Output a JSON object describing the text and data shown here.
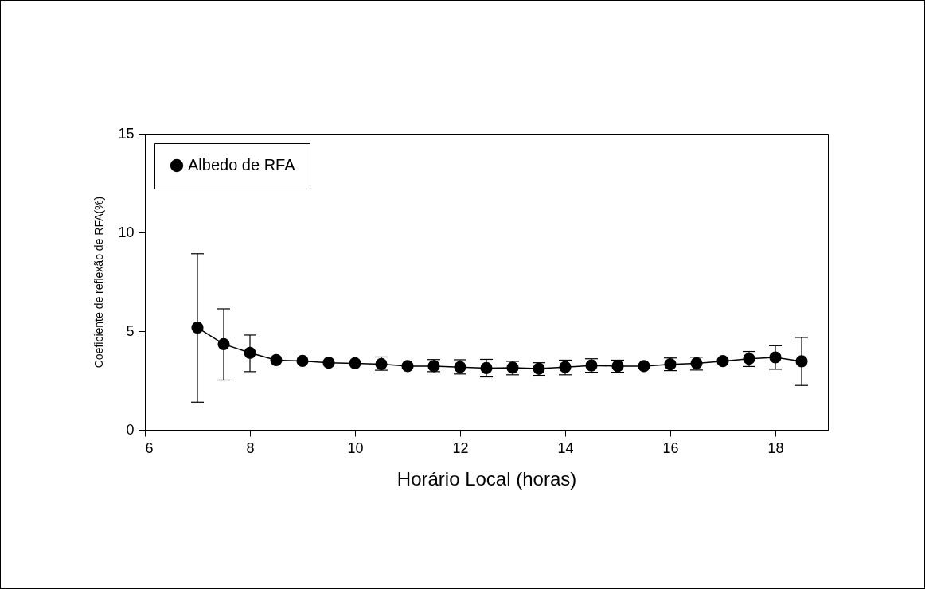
{
  "chart_data": {
    "type": "line",
    "xlabel": "Horário Local (horas)",
    "ylabel": "Coeficiente de reflexão de RFA(%)",
    "x": [
      7,
      7.5,
      8,
      8.5,
      9,
      9.5,
      10,
      10.5,
      11,
      11.5,
      12,
      12.5,
      13,
      13.5,
      14,
      14.5,
      15,
      15.5,
      16,
      16.5,
      17,
      17.5,
      18,
      18.5
    ],
    "series": [
      {
        "name": "Albedo de RFA",
        "color": "#000000",
        "values": [
          5.18,
          4.34,
          3.9,
          3.53,
          3.49,
          3.4,
          3.37,
          3.33,
          3.23,
          3.23,
          3.18,
          3.13,
          3.15,
          3.1,
          3.18,
          3.26,
          3.23,
          3.23,
          3.32,
          3.37,
          3.48,
          3.6,
          3.67,
          3.47
        ],
        "errors": [
          [
            1.4,
            8.92
          ],
          [
            2.52,
            6.13
          ],
          [
            2.95,
            4.8
          ],
          null,
          null,
          null,
          null,
          [
            3.02,
            3.69
          ],
          null,
          [
            2.95,
            3.56
          ],
          [
            2.83,
            3.55
          ],
          [
            2.68,
            3.57
          ],
          [
            2.79,
            3.47
          ],
          [
            2.76,
            3.4
          ],
          [
            2.79,
            3.53
          ],
          [
            2.92,
            3.6
          ],
          [
            2.92,
            3.53
          ],
          null,
          [
            3.0,
            3.64
          ],
          [
            3.03,
            3.68
          ],
          null,
          [
            3.21,
            3.97
          ],
          [
            3.07,
            4.26
          ],
          [
            2.25,
            4.68
          ]
        ]
      }
    ],
    "xlim": [
      6,
      19
    ],
    "xticks": [
      6,
      8,
      10,
      12,
      14,
      16,
      18
    ],
    "ylim": [
      0,
      15
    ],
    "yticks": [
      0,
      5,
      10,
      15
    ],
    "grid": false,
    "legend": "top left",
    "marker": "circle",
    "line_style": "solid"
  }
}
